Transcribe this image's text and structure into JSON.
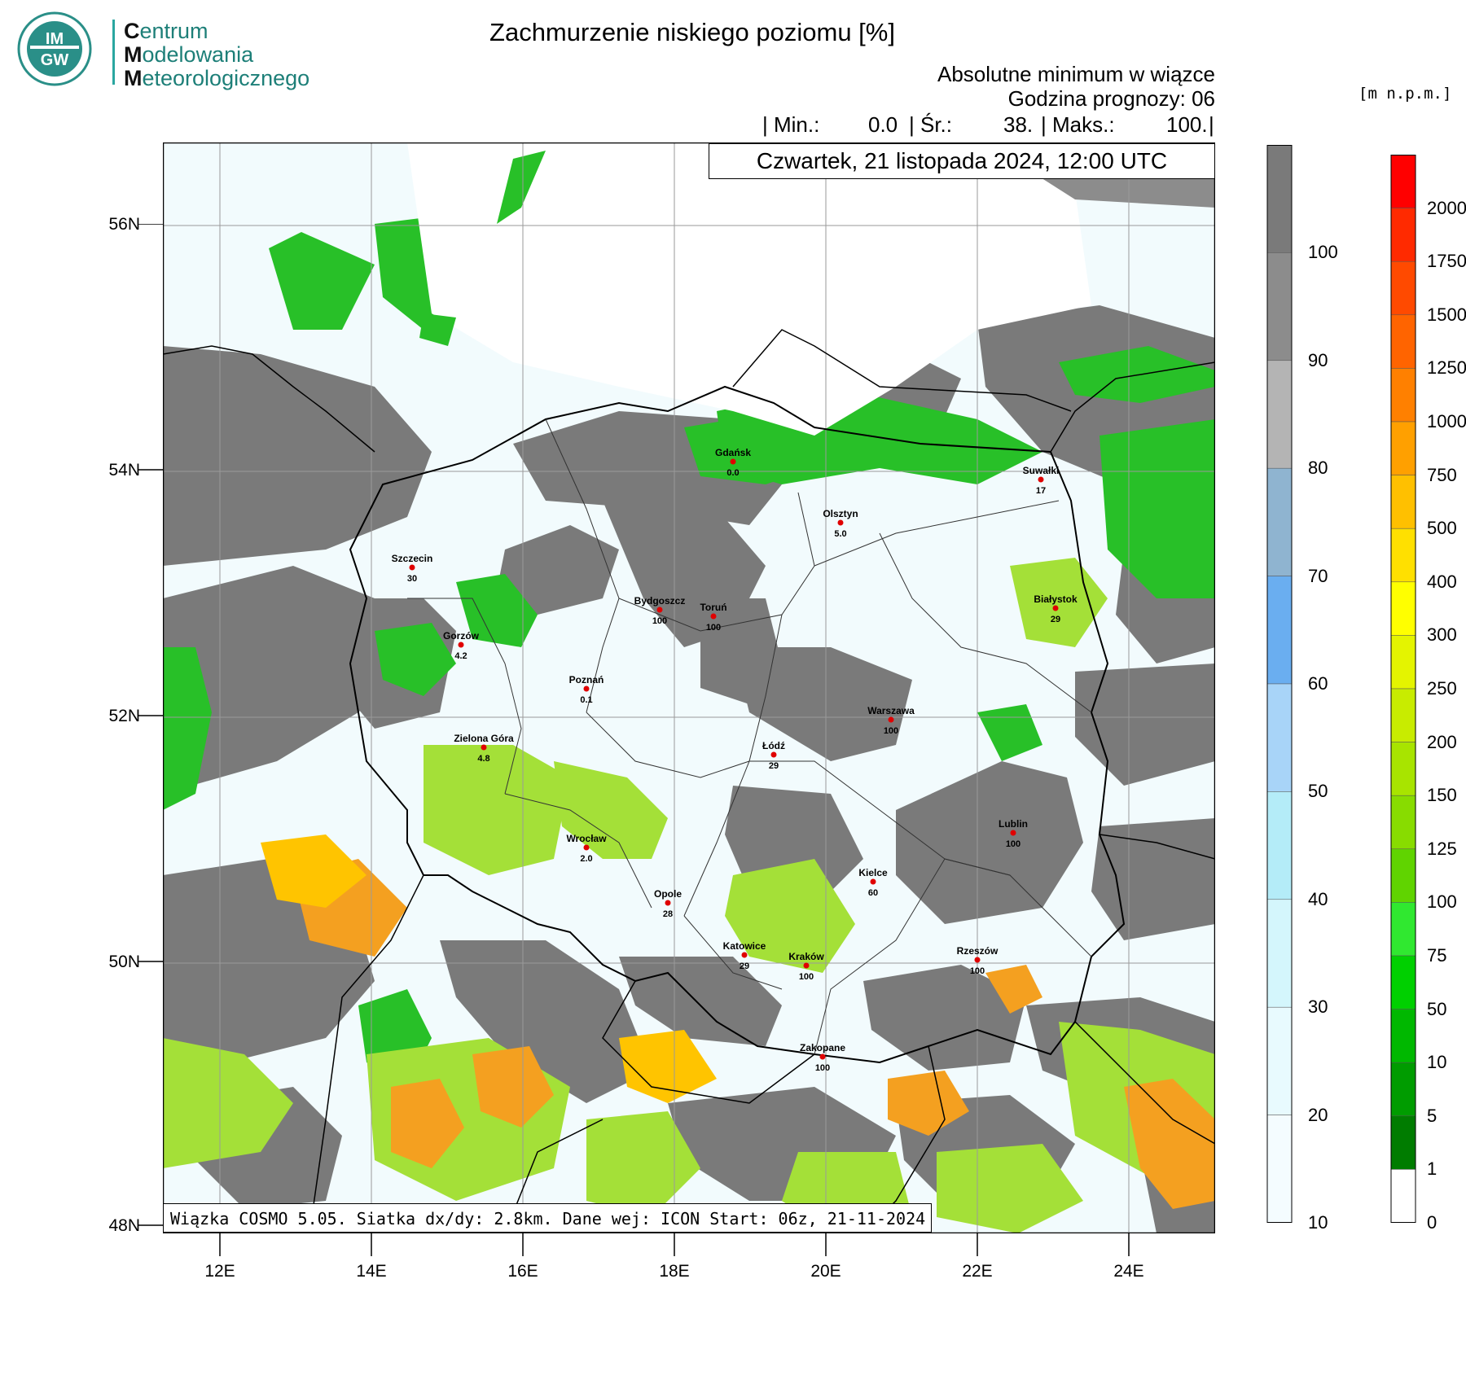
{
  "logo": {
    "badge_text": "IMGW",
    "lines": [
      {
        "initial": "C",
        "rest": "entrum"
      },
      {
        "initial": "M",
        "rest": "odelowania"
      },
      {
        "initial": "M",
        "rest": "eteorologicznego"
      }
    ]
  },
  "header": {
    "title": "Zachmurzenie niskiego poziomu [%]",
    "subtitle_1": "Absolutne minimum w wiązce",
    "subtitle_2": "Godzina prognozy: 06",
    "stats": {
      "sep_1": "| Min.:",
      "min": "0.0",
      "sep_2": "| Śr.:",
      "mean": "38.",
      "sep_3": "| Maks.:",
      "max": "100.",
      "sep_end": "|"
    }
  },
  "date_box": "Czwartek, 21 listopada 2024, 12:00 UTC",
  "footer_box": "Wiązka COSMO 5.05. Siatka dx/dy: 2.8km. Dane wej: ICON Start: 06z, 21-11-2024",
  "map": {
    "lat_labels": [
      "56N",
      "54N",
      "52N",
      "50N",
      "48N"
    ],
    "lon_labels": [
      "12E",
      "14E",
      "16E",
      "18E",
      "20E",
      "22E",
      "24E"
    ],
    "cities": [
      {
        "name": "Gdańsk",
        "value": "0.0"
      },
      {
        "name": "Suwałki",
        "value": "17"
      },
      {
        "name": "Olsztyn",
        "value": "5.0"
      },
      {
        "name": "Szczecin",
        "value": "30"
      },
      {
        "name": "Bydgoszcz",
        "value": "100"
      },
      {
        "name": "Toruń",
        "value": "100"
      },
      {
        "name": "Białystok",
        "value": "29"
      },
      {
        "name": "Gorzów",
        "value": "4.2"
      },
      {
        "name": "Poznań",
        "value": "0.1"
      },
      {
        "name": "Warszawa",
        "value": "100"
      },
      {
        "name": "Zielona Góra",
        "value": "4.8"
      },
      {
        "name": "Łódź",
        "value": "29"
      },
      {
        "name": "Lublin",
        "value": "100"
      },
      {
        "name": "Wrocław",
        "value": "2.0"
      },
      {
        "name": "Kielce",
        "value": "60"
      },
      {
        "name": "Opole",
        "value": "28"
      },
      {
        "name": "Katowice",
        "value": "29"
      },
      {
        "name": "Kraków",
        "value": "100"
      },
      {
        "name": "Rzeszów",
        "value": "100"
      },
      {
        "name": "Zakopane",
        "value": "100"
      }
    ]
  },
  "cloud_colorbar": {
    "labels": [
      "100",
      "90",
      "80",
      "70",
      "60",
      "50",
      "40",
      "30",
      "20",
      "10"
    ],
    "colors": [
      "#7a7a7a",
      "#8c8c8c",
      "#b4b4b4",
      "#8fb4d0",
      "#6aaef0",
      "#a8d4f8",
      "#b4ecf8",
      "#d4f6fc",
      "#e8fafe",
      "#f4fcff"
    ]
  },
  "terrain_colorbar": {
    "unit": "[m n.p.m.]",
    "labels": [
      "2000",
      "1750",
      "1500",
      "1250",
      "1000",
      "750",
      "500",
      "400",
      "300",
      "250",
      "200",
      "150",
      "125",
      "100",
      "75",
      "50",
      "10",
      "5",
      "1",
      "0"
    ],
    "colors": [
      "#ff0000",
      "#ff2a00",
      "#ff4a00",
      "#ff6400",
      "#ff8000",
      "#ffa000",
      "#ffc000",
      "#ffe000",
      "#ffff00",
      "#e4f400",
      "#c8ec00",
      "#a8e400",
      "#88dc00",
      "#60d400",
      "#30e830",
      "#00d000",
      "#00b800",
      "#009c00",
      "#007c00",
      "#ffffff"
    ]
  }
}
